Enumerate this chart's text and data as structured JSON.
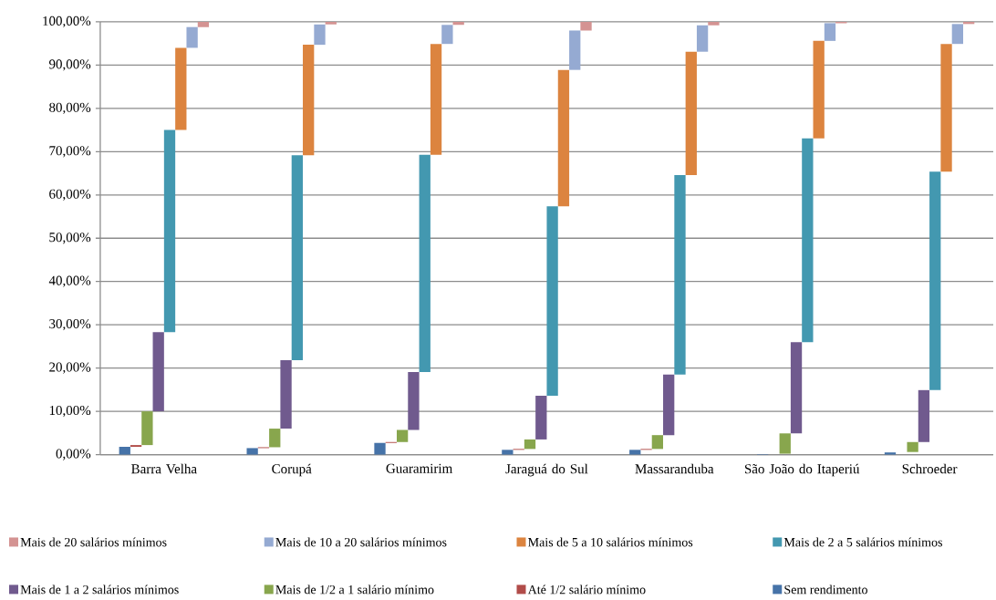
{
  "chart_data": {
    "type": "bar",
    "categories": [
      "Barra Velha",
      "Corupá",
      "Guaramirim",
      "Jaraguá do Sul",
      "Massaranduba",
      "São João do Itaperiú",
      "Schroeder"
    ],
    "series": [
      {
        "name": "Sem rendimento",
        "color": "#4673a8",
        "values": [
          1.8,
          1.5,
          2.7,
          1.1,
          1.1,
          0.1,
          0.5
        ],
        "base": [
          0,
          0,
          0,
          0,
          0,
          0,
          0
        ]
      },
      {
        "name": "Até 1/2 salário mínimo",
        "color": "#b14c49",
        "values": [
          0.4,
          0.2,
          0.2,
          0.2,
          0.2,
          null,
          null
        ],
        "base": [
          1.8,
          1.5,
          2.7,
          1.1,
          1.1,
          null,
          null
        ]
      },
      {
        "name": "Mais de 1/2 a 1 salário mínimo",
        "color": "#88a64d",
        "values": [
          7.8,
          4.3,
          2.8,
          2.2,
          3.2,
          4.7,
          2.3
        ],
        "base": [
          2.2,
          1.7,
          2.9,
          1.3,
          1.3,
          0.2,
          0.6
        ]
      },
      {
        "name": "Mais de 1 a 2 salários mínimos",
        "color": "#705a8e",
        "values": [
          18.3,
          15.8,
          13.4,
          10.1,
          14.0,
          21.1,
          12.0
        ],
        "base": [
          10.0,
          6.0,
          5.7,
          3.5,
          4.5,
          4.9,
          2.9
        ]
      },
      {
        "name": "Mais de 2 a 5 salários mínimos",
        "color": "#4398b0",
        "values": [
          46.7,
          47.4,
          50.2,
          43.8,
          46.1,
          47.1,
          50.5
        ],
        "base": [
          28.3,
          21.8,
          19.1,
          13.6,
          18.5,
          26.0,
          14.9
        ]
      },
      {
        "name": "Mais de 5 a 10 salários mínimos",
        "color": "#dc843f",
        "values": [
          19.0,
          25.5,
          25.6,
          31.5,
          28.5,
          22.5,
          29.5
        ],
        "base": [
          75.0,
          69.2,
          69.3,
          57.4,
          64.6,
          73.1,
          65.4
        ]
      },
      {
        "name": "Mais de 10 a 20 salários mínimos",
        "color": "#95aad2",
        "values": [
          4.8,
          4.7,
          4.4,
          9.1,
          6.1,
          4.1,
          4.6
        ],
        "base": [
          94.0,
          94.7,
          94.9,
          88.9,
          93.1,
          95.6,
          94.9
        ]
      },
      {
        "name": "Mais de 20 salários mínimos",
        "color": "#d49392",
        "values": [
          1.2,
          0.6,
          0.7,
          2.0,
          0.8,
          0.3,
          0.5
        ],
        "base": [
          98.8,
          99.4,
          99.3,
          98.0,
          99.2,
          99.7,
          99.5
        ]
      }
    ],
    "ylim": [
      0,
      100
    ],
    "yticks": [
      {
        "value": 0,
        "label": "0,00%"
      },
      {
        "value": 10,
        "label": "10,00%"
      },
      {
        "value": 20,
        "label": "20,00%"
      },
      {
        "value": 30,
        "label": "30,00%"
      },
      {
        "value": 40,
        "label": "40,00%"
      },
      {
        "value": 50,
        "label": "50,00%"
      },
      {
        "value": 60,
        "label": "60,00%"
      },
      {
        "value": 70,
        "label": "70,00%"
      },
      {
        "value": 80,
        "label": "80,00%"
      },
      {
        "value": 90,
        "label": "90,00%"
      },
      {
        "value": 100,
        "label": "100,00%"
      }
    ],
    "grid": "y",
    "legend": "bottom"
  }
}
